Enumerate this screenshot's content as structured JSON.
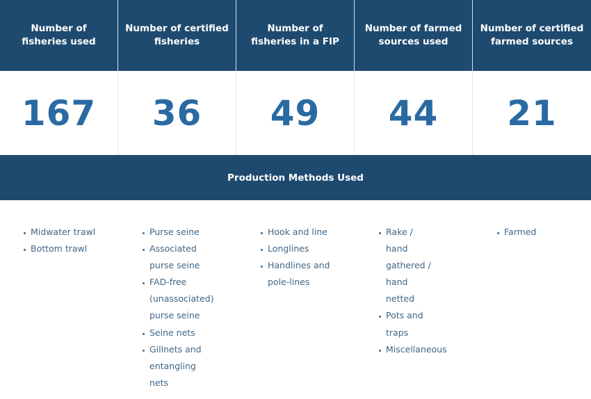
{
  "stats": [
    {
      "label": "Number of fisheries used",
      "value": "167"
    },
    {
      "label": "Number of certified fisheries",
      "value": "36"
    },
    {
      "label": "Number of fisheries in a FIP",
      "value": "49"
    },
    {
      "label": "Number of farmed sources used",
      "value": "44"
    },
    {
      "label": "Number of certified farmed sources",
      "value": "21"
    }
  ],
  "methods_title": "Production Methods Used",
  "methods": [
    [
      "Midwater trawl",
      "Bottom trawl"
    ],
    [
      "Purse seine",
      "Associated purse seine",
      "FAD-free (unassociated) purse seine",
      "Seine nets",
      "Gillnets and entangling nets"
    ],
    [
      "Hook and line",
      "Longlines",
      "Handlines and pole-lines"
    ],
    [
      "Rake / hand gathered / hand netted",
      "Pots and traps",
      "Miscellaneous"
    ],
    [
      "Farmed"
    ]
  ],
  "colors": {
    "header_bg": "#1f4a6f",
    "value_text": "#2a6aa3",
    "list_text": "#3f6585"
  }
}
